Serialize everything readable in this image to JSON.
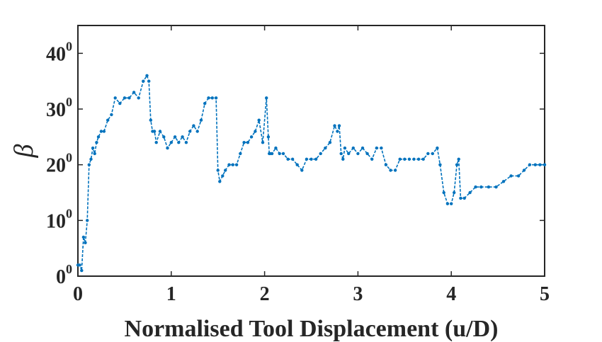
{
  "chart_data": {
    "type": "line",
    "xlabel": "Normalised Tool Displacement (u/D)",
    "ylabel": "β",
    "xlim": [
      0,
      5
    ],
    "ylim": [
      0,
      45
    ],
    "x_ticks": [
      {
        "value": 0,
        "label": "0"
      },
      {
        "value": 1,
        "label": "1"
      },
      {
        "value": 2,
        "label": "2"
      },
      {
        "value": 3,
        "label": "3"
      },
      {
        "value": 4,
        "label": "4"
      },
      {
        "value": 5,
        "label": "5"
      }
    ],
    "y_ticks": [
      {
        "value": 0,
        "base": "0",
        "sup": "0"
      },
      {
        "value": 10,
        "base": "10",
        "sup": "0"
      },
      {
        "value": 20,
        "base": "20",
        "sup": "0"
      },
      {
        "value": 30,
        "base": "30",
        "sup": "0"
      },
      {
        "value": 40,
        "base": "40",
        "sup": "0"
      }
    ],
    "grid": false,
    "line_color": "#0072BD",
    "series": [
      {
        "marker": "dot",
        "line_style": "dashed",
        "x": [
          0.0,
          0.02,
          0.04,
          0.06,
          0.08,
          0.1,
          0.12,
          0.14,
          0.16,
          0.18,
          0.2,
          0.22,
          0.25,
          0.28,
          0.32,
          0.36,
          0.4,
          0.45,
          0.5,
          0.55,
          0.6,
          0.65,
          0.7,
          0.74,
          0.76,
          0.78,
          0.8,
          0.82,
          0.84,
          0.88,
          0.92,
          0.96,
          1.0,
          1.04,
          1.08,
          1.12,
          1.16,
          1.2,
          1.24,
          1.28,
          1.32,
          1.36,
          1.4,
          1.44,
          1.48,
          1.5,
          1.52,
          1.55,
          1.58,
          1.62,
          1.66,
          1.7,
          1.74,
          1.78,
          1.82,
          1.86,
          1.9,
          1.94,
          1.98,
          2.02,
          2.04,
          2.05,
          2.06,
          2.08,
          2.12,
          2.16,
          2.2,
          2.25,
          2.3,
          2.35,
          2.4,
          2.45,
          2.5,
          2.55,
          2.6,
          2.65,
          2.7,
          2.75,
          2.78,
          2.8,
          2.82,
          2.84,
          2.86,
          2.9,
          2.95,
          3.0,
          3.05,
          3.1,
          3.15,
          3.2,
          3.25,
          3.3,
          3.35,
          3.4,
          3.45,
          3.5,
          3.55,
          3.6,
          3.65,
          3.7,
          3.75,
          3.8,
          3.85,
          3.88,
          3.92,
          3.96,
          4.0,
          4.03,
          4.06,
          4.08,
          4.1,
          4.14,
          4.2,
          4.26,
          4.32,
          4.4,
          4.48,
          4.56,
          4.64,
          4.72,
          4.78,
          4.84,
          4.9,
          4.95,
          5.0
        ],
        "y": [
          2,
          2,
          1,
          7,
          6,
          10,
          20,
          21,
          23,
          22,
          24,
          25,
          26,
          26,
          28,
          29,
          32,
          31,
          32,
          32,
          33,
          32,
          35,
          36,
          35,
          28,
          26,
          26,
          24,
          26,
          25,
          23,
          24,
          25,
          24,
          25,
          24,
          26,
          27,
          26,
          28,
          31,
          32,
          32,
          32,
          19,
          17,
          18,
          19,
          20,
          20,
          20,
          22,
          24,
          24,
          25,
          26,
          28,
          24,
          32,
          25,
          22,
          22,
          22,
          23,
          22,
          22,
          21,
          21,
          20,
          19,
          21,
          21,
          21,
          22,
          23,
          24,
          27,
          26,
          27,
          22,
          21,
          23,
          22,
          23,
          22,
          23,
          22,
          21,
          23,
          23,
          20,
          19,
          19,
          21,
          21,
          21,
          21,
          21,
          21,
          22,
          22,
          23,
          20,
          15,
          13,
          13,
          15,
          20,
          21,
          14,
          14,
          15,
          16,
          16,
          16,
          16,
          17,
          18,
          18,
          19,
          20,
          20,
          20,
          20
        ]
      }
    ]
  }
}
